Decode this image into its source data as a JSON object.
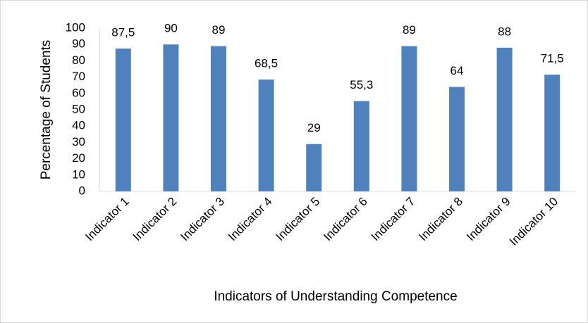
{
  "chart_data": {
    "type": "bar",
    "categories": [
      "Indicator 1",
      "Indicator 2",
      "Indicator 3",
      "Indicator 4",
      "Indicator 5",
      "Indicator 6",
      "Indicator 7",
      "Indicator 8",
      "Indicator 9",
      "Indicator 10"
    ],
    "values": [
      87.5,
      90,
      89,
      68.5,
      29,
      55.3,
      89,
      64,
      88,
      71.5
    ],
    "value_labels": [
      "87,5",
      "90",
      "89",
      "68,5",
      "29",
      "55,3",
      "89",
      "64",
      "88",
      "71,5"
    ],
    "color": "#4f81bd",
    "ylim": [
      0,
      100
    ],
    "yticks": [
      0,
      10,
      20,
      30,
      40,
      50,
      60,
      70,
      80,
      90,
      100
    ],
    "grid": false,
    "xlabel": "Indicators of Understanding Competence",
    "ylabel": "Percentage of Students"
  }
}
